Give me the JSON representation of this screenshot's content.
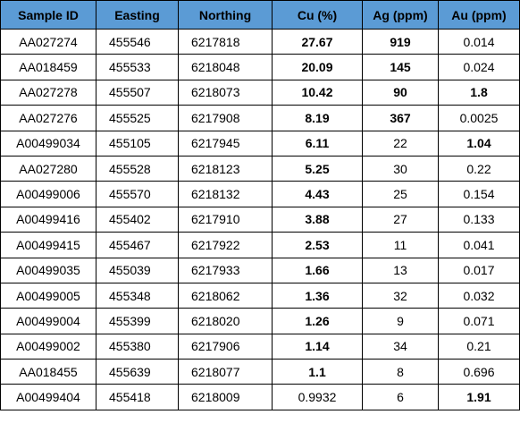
{
  "table": {
    "header": [
      "Sample ID",
      "Easting",
      "Northing",
      "Cu (%)",
      "Ag (ppm)",
      "Au (ppm)"
    ],
    "header_color": "#5b9bd5",
    "rows": [
      [
        "AA027274",
        "455546",
        "6217818",
        "27.67",
        "919",
        "0.014"
      ],
      [
        "AA018459",
        "455533",
        "6218048",
        "20.09",
        "145",
        "0.024"
      ],
      [
        "AA027278",
        "455507",
        "6218073",
        "10.42",
        "90",
        "1.8"
      ],
      [
        "AA027276",
        "455525",
        "6217908",
        "8.19",
        "367",
        "0.0025"
      ],
      [
        "A00499034",
        "455105",
        "6217945",
        "6.11",
        "22",
        "1.04"
      ],
      [
        "AA027280",
        "455528",
        "6218123",
        "5.25",
        "30",
        "0.22"
      ],
      [
        "A00499006",
        "455570",
        "6218132",
        "4.43",
        "25",
        "0.154"
      ],
      [
        "A00499416",
        "455402",
        "6217910",
        "3.88",
        "27",
        "0.133"
      ],
      [
        "A00499415",
        "455467",
        "6217922",
        "2.53",
        "11",
        "0.041"
      ],
      [
        "A00499035",
        "455039",
        "6217933",
        "1.66",
        "13",
        "0.017"
      ],
      [
        "A00499005",
        "455348",
        "6218062",
        "1.36",
        "32",
        "0.032"
      ],
      [
        "A00499004",
        "455399",
        "6218020",
        "1.26",
        "9",
        "0.071"
      ],
      [
        "A00499002",
        "455380",
        "6217906",
        "1.14",
        "34",
        "0.21"
      ],
      [
        "AA018455",
        "455639",
        "6218077",
        "1.1",
        "8",
        "0.696"
      ],
      [
        "A00499404",
        "455418",
        "6218009",
        "0.9932",
        "6",
        "1.91"
      ]
    ],
    "bold": [
      [
        false,
        false,
        false,
        true,
        true,
        false
      ],
      [
        false,
        false,
        false,
        true,
        true,
        false
      ],
      [
        false,
        false,
        false,
        true,
        true,
        true
      ],
      [
        false,
        false,
        false,
        true,
        true,
        false
      ],
      [
        false,
        false,
        false,
        true,
        false,
        true
      ],
      [
        false,
        false,
        false,
        true,
        false,
        false
      ],
      [
        false,
        false,
        false,
        true,
        false,
        false
      ],
      [
        false,
        false,
        false,
        true,
        false,
        false
      ],
      [
        false,
        false,
        false,
        true,
        false,
        false
      ],
      [
        false,
        false,
        false,
        true,
        false,
        false
      ],
      [
        false,
        false,
        false,
        true,
        false,
        false
      ],
      [
        false,
        false,
        false,
        true,
        false,
        false
      ],
      [
        false,
        false,
        false,
        true,
        false,
        false
      ],
      [
        false,
        false,
        false,
        true,
        false,
        false
      ],
      [
        false,
        false,
        false,
        false,
        false,
        true
      ]
    ]
  }
}
